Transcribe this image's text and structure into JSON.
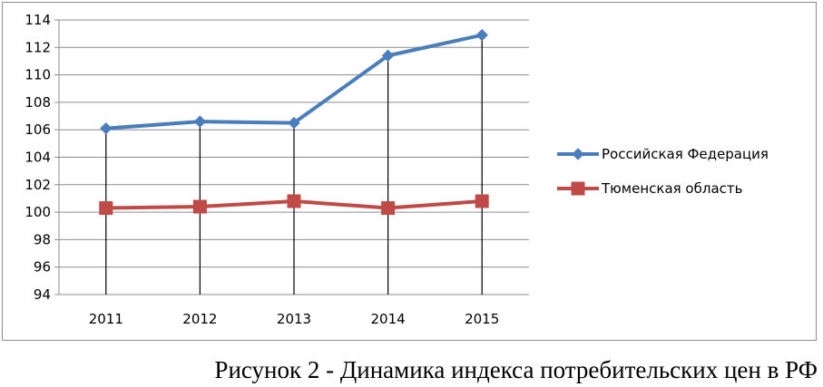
{
  "chart_data": {
    "type": "line",
    "title": "",
    "xlabel": "",
    "ylabel": "",
    "categories": [
      "2011",
      "2012",
      "2013",
      "2014",
      "2015"
    ],
    "ylim": [
      94,
      114
    ],
    "ytick_step": 2,
    "grid": true,
    "legend_position": "right",
    "series": [
      {
        "name": "Российская Федерация",
        "values": [
          106.1,
          106.6,
          106.5,
          111.4,
          112.9
        ],
        "color": "#4a7ebb",
        "marker": "diamond"
      },
      {
        "name": "Тюменская область",
        "values": [
          100.3,
          100.4,
          100.8,
          100.3,
          100.8
        ],
        "color": "#be4b48",
        "marker": "square"
      }
    ]
  },
  "caption": {
    "text": "Рисунок 2 - Динамика индекса потребительских цен в РФ"
  }
}
